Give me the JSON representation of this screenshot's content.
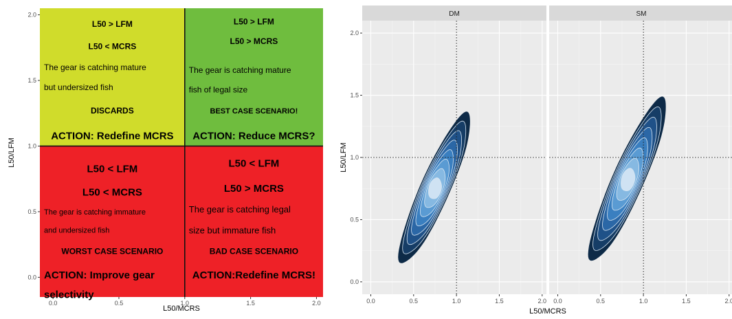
{
  "chart_data": [
    {
      "type": "table",
      "xlabel": "L50/MCRS",
      "ylabel": "L50/LFM",
      "xlim": [
        -0.1,
        2.05
      ],
      "ylim": [
        -0.15,
        2.05
      ],
      "xticks": [
        0.0,
        0.5,
        1.0,
        1.5,
        2.0
      ],
      "yticks": [
        0.0,
        0.5,
        1.0,
        1.5,
        2.0
      ],
      "xtick_labels": [
        "0.0",
        "0.5",
        "1.0",
        "1.5",
        "2.0"
      ],
      "ytick_labels": [
        "0.0",
        "0.5",
        "1.0",
        "1.5",
        "2.0"
      ],
      "divider": {
        "x": 1.0,
        "y": 1.0
      },
      "quadrants": [
        {
          "position": "top-left",
          "color": "#d0dc2b",
          "lines": [
            {
              "text": "L50 > LFM",
              "size": 12,
              "bold": true,
              "y": 1.93
            },
            {
              "text": "L50 < MCRS",
              "size": 12,
              "bold": true,
              "y": 1.76
            },
            {
              "text": "The gear is catching mature",
              "size": 12,
              "bold": false,
              "y": 1.6,
              "anchor": "start"
            },
            {
              "text": "but undersized fish",
              "size": 12,
              "bold": false,
              "y": 1.45,
              "anchor": "start"
            },
            {
              "text": "DISCARDS",
              "size": 12,
              "bold": true,
              "y": 1.27
            },
            {
              "text": "ACTION: Redefine MCRS",
              "size": 15,
              "bold": true,
              "y": 1.08
            }
          ]
        },
        {
          "position": "top-right",
          "color": "#6fbd3e",
          "lines": [
            {
              "text": "L50 > LFM",
              "size": 12,
              "bold": true,
              "y": 1.95
            },
            {
              "text": "L50 > MCRS",
              "size": 12,
              "bold": true,
              "y": 1.8
            },
            {
              "text": "The gear is catching mature",
              "size": 12,
              "bold": false,
              "y": 1.58,
              "anchor": "start"
            },
            {
              "text": "fish of legal size",
              "size": 12,
              "bold": false,
              "y": 1.43,
              "anchor": "start"
            },
            {
              "text": "BEST CASE SCENARIO!",
              "size": 11,
              "bold": true,
              "y": 1.27
            },
            {
              "text": "ACTION: Reduce MCRS?",
              "size": 15,
              "bold": true,
              "y": 1.08
            }
          ]
        },
        {
          "position": "bottom-left",
          "color": "#ee2127",
          "lines": [
            {
              "text": "L50 < LFM",
              "size": 15,
              "bold": true,
              "y": 0.83
            },
            {
              "text": "L50 < MCRS",
              "size": 15,
              "bold": true,
              "y": 0.65
            },
            {
              "text": "The gear is catching immature",
              "size": 11,
              "bold": false,
              "y": 0.5,
              "anchor": "start"
            },
            {
              "text": "and undersized fish",
              "size": 11,
              "bold": false,
              "y": 0.36,
              "anchor": "start"
            },
            {
              "text": "WORST CASE SCENARIO",
              "size": 12,
              "bold": true,
              "y": 0.2
            },
            {
              "text": "ACTION: Improve gear",
              "size": 15,
              "bold": true,
              "y": 0.02,
              "anchor": "start"
            },
            {
              "text": "selectivity",
              "size": 15,
              "bold": true,
              "y": -0.13,
              "anchor": "start"
            }
          ]
        },
        {
          "position": "bottom-right",
          "color": "#ee2127",
          "lines": [
            {
              "text": "L50 < LFM",
              "size": 15,
              "bold": true,
              "y": 0.87
            },
            {
              "text": "L50 > MCRS",
              "size": 15,
              "bold": true,
              "y": 0.68
            },
            {
              "text": "The gear is catching legal",
              "size": 13,
              "bold": false,
              "y": 0.52,
              "anchor": "start"
            },
            {
              "text": "size but immature fish",
              "size": 13,
              "bold": false,
              "y": 0.36,
              "anchor": "start"
            },
            {
              "text": "BAD CASE SCENARIO",
              "size": 12,
              "bold": true,
              "y": 0.2
            },
            {
              "text": "ACTION:Redefine MCRS!",
              "size": 15,
              "bold": true,
              "y": 0.02
            }
          ]
        }
      ]
    },
    {
      "type": "heatmap",
      "xlabel": "L50/MCRS",
      "ylabel": "L50/LFM",
      "xlim": [
        -0.1,
        2.05
      ],
      "ylim": [
        -0.1,
        2.1
      ],
      "xticks": [
        0.0,
        0.5,
        1.0,
        1.5,
        2.0
      ],
      "yticks": [
        0.0,
        0.5,
        1.0,
        1.5,
        2.0
      ],
      "xtick_labels": [
        "0.0",
        "0.5",
        "1.0",
        "1.5",
        "2.0"
      ],
      "ytick_labels": [
        "0.0",
        "0.5",
        "1.0",
        "1.5",
        "2.0"
      ],
      "reference_lines": {
        "x": 1.0,
        "y": 1.0
      },
      "grid": true,
      "panel_background": "#ebebeb",
      "strip_background": "#d9d9d9",
      "level_colors": [
        "#0d2a47",
        "#163d66",
        "#1f5188",
        "#2b67a6",
        "#3a7fc0",
        "#5a9bd3",
        "#86b9e2",
        "#cfe2f3"
      ],
      "panels": [
        {
          "strip": "DM",
          "density": {
            "peak": [
              0.75,
              0.75
            ],
            "direction": [
              0.55,
              0.83
            ],
            "half_length": 0.72,
            "half_width": 0.16
          }
        },
        {
          "strip": "SM",
          "density": {
            "peak": [
              0.82,
              0.82
            ],
            "direction": [
              0.55,
              0.83
            ],
            "half_length": 0.78,
            "half_width": 0.17
          }
        }
      ]
    }
  ]
}
